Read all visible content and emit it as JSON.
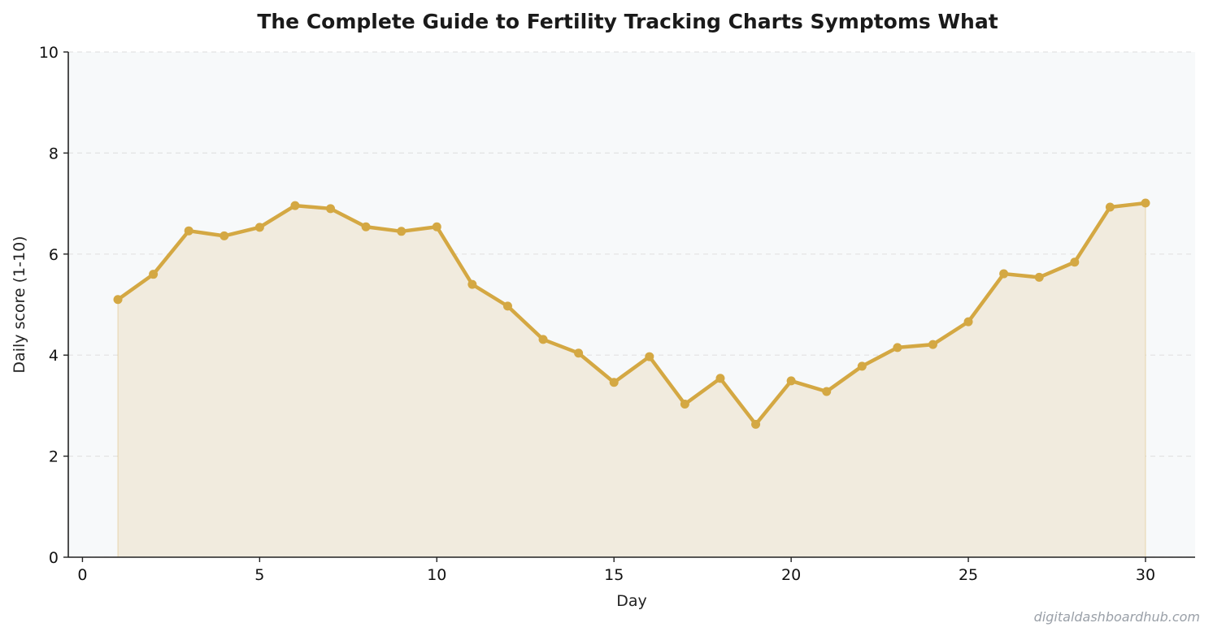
{
  "chart_data": {
    "type": "line",
    "title": "The Complete Guide to Fertility Tracking  Charts  Symptoms  What",
    "xlabel": "Day",
    "ylabel": "Daily score (1-10)",
    "xlim": [
      -0.4,
      31.4
    ],
    "ylim": [
      0,
      10
    ],
    "x_ticks": [
      0,
      5,
      10,
      15,
      20,
      25,
      30
    ],
    "y_ticks": [
      0,
      2,
      4,
      6,
      8,
      10
    ],
    "grid": "horizontal dashed",
    "legend": "none",
    "series": [
      {
        "x": [
          1,
          2,
          3,
          4,
          5,
          6,
          7,
          8,
          9,
          10,
          11,
          12,
          13,
          14,
          15,
          16,
          17,
          18,
          19,
          20,
          21,
          22,
          23,
          24,
          25,
          26,
          27,
          28,
          29,
          30
        ],
        "y": [
          5.1,
          5.6,
          6.46,
          6.36,
          6.53,
          6.96,
          6.9,
          6.54,
          6.45,
          6.54,
          5.4,
          4.97,
          4.31,
          4.04,
          3.46,
          3.97,
          3.03,
          3.54,
          2.63,
          3.49,
          3.28,
          3.78,
          4.15,
          4.21,
          4.66,
          5.61,
          5.54,
          5.84,
          6.93,
          7.01
        ]
      }
    ]
  },
  "colors": {
    "line": "#d4a843",
    "fill": "#f1ebde",
    "plot_background": "#f7f9fa",
    "grid": "#dddddd",
    "axis": "#222222"
  },
  "watermark": "digitaldashboardhub.com"
}
